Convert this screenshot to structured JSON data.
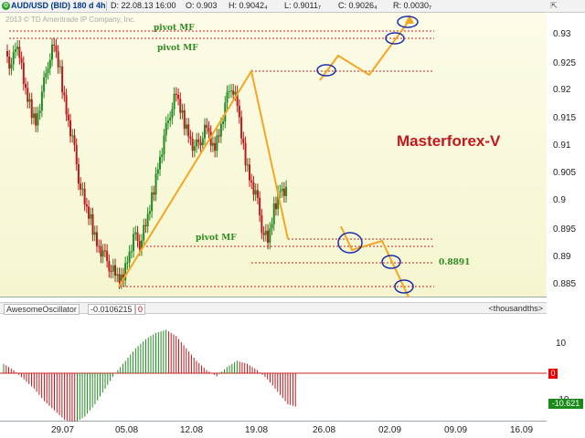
{
  "header": {
    "symbol": "AUD/USD (BID) 180 d 4h",
    "date": "D: 22.08.13 16:00",
    "open": "O: 0.903",
    "high": "H: 0.9042₄",
    "low": "L: 0.9011₇",
    "close": "C: 0.9026₄",
    "range": "R: 0.0030₇"
  },
  "copyright": "2013 © TD Ameritrade IP Company, Inc.",
  "annotations": {
    "pivot_labels": [
      "pivot MF",
      "pivot MF",
      "pivot MF"
    ],
    "brand": "Masterforex-V",
    "price_level": "0.8891"
  },
  "price_axis": [
    "0.93",
    "0.925",
    "0.92",
    "0.915",
    "0.91",
    "0.905",
    "0.9",
    "0.895",
    "0.89",
    "0.885"
  ],
  "indicator": {
    "name": "AwesomeOscillator",
    "value": "-0.0106215",
    "zero": "0",
    "units": "<thousandths>",
    "ticks": [
      "10",
      "0",
      "-10"
    ],
    "zero_badge": "0",
    "last_badge": "-10.621"
  },
  "time_axis": [
    "29.07",
    "05.08",
    "12.08",
    "19.08",
    "26.08",
    "02.09",
    "09.09",
    "16.09"
  ],
  "colors": {
    "up": "#1e8c1e",
    "down": "#c0171c",
    "trend": "#f5a623",
    "circle": "#1c2fa8",
    "pivot": "#cc2020"
  },
  "chart_data": {
    "type": "candlestick",
    "y_range": [
      0.883,
      0.935
    ],
    "close_series": [
      0.928,
      0.925,
      0.93,
      0.922,
      0.918,
      0.915,
      0.92,
      0.926,
      0.929,
      0.924,
      0.917,
      0.912,
      0.905,
      0.9,
      0.897,
      0.893,
      0.891,
      0.889,
      0.887,
      0.886,
      0.89,
      0.894,
      0.893,
      0.896,
      0.901,
      0.907,
      0.912,
      0.917,
      0.92,
      0.916,
      0.913,
      0.91,
      0.912,
      0.914,
      0.91,
      0.913,
      0.918,
      0.922,
      0.918,
      0.91,
      0.905,
      0.902,
      0.896,
      0.893,
      0.899,
      0.903,
      0.9026
    ],
    "oscillator": [
      3,
      1,
      -2,
      -5,
      -9,
      -12,
      -15,
      -16,
      -14,
      -10,
      -5,
      0,
      4,
      8,
      11,
      13,
      14,
      12,
      8,
      4,
      1,
      -1,
      2,
      4,
      3,
      1,
      -2,
      -6,
      -10,
      -11
    ]
  }
}
